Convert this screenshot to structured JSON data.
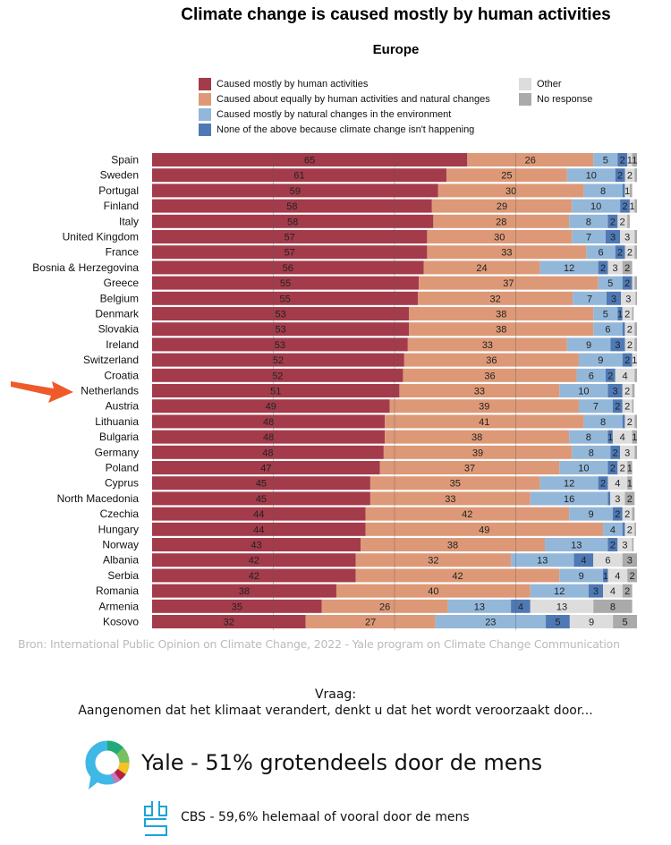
{
  "chart_data": {
    "type": "bar",
    "orientation": "horizontal-stacked-100",
    "title": "Climate change is caused mostly by human activities",
    "subtitle": "Europe",
    "xlim": [
      0,
      100
    ],
    "legend": [
      {
        "name": "Caused mostly by human activities",
        "color": "#a33b4b"
      },
      {
        "name": "Caused about equally by human activities and natural changes",
        "color": "#dd9977"
      },
      {
        "name": "Caused mostly by natural changes in the environment",
        "color": "#93b7d9"
      },
      {
        "name": "None of the above because climate change isn't happening",
        "color": "#4f79b5"
      },
      {
        "name": "Other",
        "color": "#dddddd"
      },
      {
        "name": "No response",
        "color": "#aaaaaa"
      }
    ],
    "categories": [
      "Spain",
      "Sweden",
      "Portugal",
      "Finland",
      "Italy",
      "United Kingdom",
      "France",
      "Bosnia & Herzegovina",
      "Greece",
      "Belgium",
      "Denmark",
      "Slovakia",
      "Ireland",
      "Switzerland",
      "Croatia",
      "Netherlands",
      "Austria",
      "Lithuania",
      "Bulgaria",
      "Germany",
      "Poland",
      "Cyprus",
      "North Macedonia",
      "Czechia",
      "Hungary",
      "Norway",
      "Albania",
      "Serbia",
      "Romania",
      "Armenia",
      "Kosovo"
    ],
    "values": [
      [
        65,
        26,
        5,
        2,
        1,
        1
      ],
      [
        61,
        25,
        10,
        2,
        2,
        0.5
      ],
      [
        59,
        30,
        8,
        0.5,
        1,
        0.5
      ],
      [
        58,
        29,
        10,
        2,
        1,
        0.5
      ],
      [
        58,
        28,
        8,
        2,
        2,
        0.5
      ],
      [
        57,
        30,
        7,
        3,
        3,
        0.5
      ],
      [
        57,
        33,
        6,
        2,
        2,
        0.5
      ],
      [
        56,
        24,
        12,
        2,
        3,
        2
      ],
      [
        55,
        37,
        5,
        2,
        0.5,
        0.5
      ],
      [
        55,
        32,
        7,
        3,
        3,
        0.3
      ],
      [
        53,
        38,
        5,
        1,
        2,
        0.3
      ],
      [
        53,
        38,
        6,
        0.5,
        2,
        0.5
      ],
      [
        53,
        33,
        9,
        3,
        2,
        0.5
      ],
      [
        52,
        36,
        9,
        2,
        1,
        0
      ],
      [
        52,
        36,
        6,
        2,
        4,
        0.5
      ],
      [
        51,
        33,
        10,
        3,
        2,
        0.5
      ],
      [
        49,
        39,
        7,
        2,
        2,
        0.3
      ],
      [
        48,
        41,
        8,
        0.5,
        2,
        0.5
      ],
      [
        48,
        38,
        8,
        1,
        4,
        1
      ],
      [
        48,
        39,
        8,
        2,
        3,
        0.5
      ],
      [
        47,
        37,
        10,
        2,
        2,
        1
      ],
      [
        45,
        35,
        12,
        2,
        4,
        1
      ],
      [
        45,
        33,
        16,
        0.5,
        3,
        2
      ],
      [
        44,
        42,
        9,
        2,
        2,
        0.5
      ],
      [
        44,
        49,
        4,
        0.5,
        2,
        0.3
      ],
      [
        43,
        38,
        13,
        2,
        3,
        0.3
      ],
      [
        42,
        32,
        13,
        4,
        6,
        3
      ],
      [
        42,
        42,
        9,
        1,
        4,
        2
      ],
      [
        38,
        40,
        12,
        3,
        4,
        2
      ],
      [
        35,
        26,
        13,
        4,
        13,
        8
      ],
      [
        32,
        27,
        23,
        5,
        9,
        5
      ]
    ],
    "highlight": "Netherlands"
  },
  "source": "Bron: International Public Opinion on Climate Change, 2022 - Yale program on Climate Change Communication",
  "question_label": "Vraag:",
  "question": "Aangenomen dat het klimaat verandert, denkt u dat het wordt veroorzaakt door...",
  "yale_text": "Yale - 51% grotendeels door de mens",
  "cbs_text": "CBS - 59,6% helemaal of vooral door de mens"
}
